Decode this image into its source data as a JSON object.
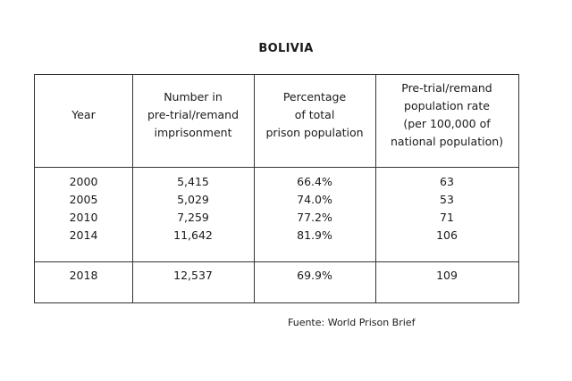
{
  "title": "BOLIVIA",
  "table": {
    "headers": [
      [
        "Year"
      ],
      [
        "Number in",
        "pre-trial/remand",
        "imprisonment"
      ],
      [
        "Percentage",
        "of total",
        "prison population"
      ],
      [
        "Pre-trial/remand",
        "population rate",
        "(per 100,000 of",
        "national population)"
      ]
    ],
    "rows": [
      {
        "year": "2000",
        "number": "5,415",
        "percentage": "66.4%",
        "rate": "63"
      },
      {
        "year": "2005",
        "number": "5,029",
        "percentage": "74.0%",
        "rate": "53"
      },
      {
        "year": "2010",
        "number": "7,259",
        "percentage": "77.2%",
        "rate": "71"
      },
      {
        "year": "2014",
        "number": "11,642",
        "percentage": "81.9%",
        "rate": "106"
      }
    ],
    "last_row": {
      "year": "2018",
      "number": "12,537",
      "percentage": "69.9%",
      "rate": "109"
    }
  },
  "source": "Fuente: World Prison Brief"
}
